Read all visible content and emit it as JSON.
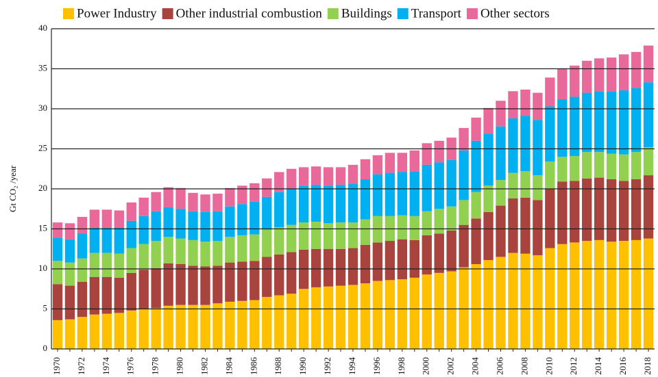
{
  "chart_data": {
    "type": "stacked_bar",
    "ylabel": "Gt CO₂ /year",
    "categories": [
      "1970",
      null,
      "1972",
      null,
      "1974",
      null,
      "1976",
      null,
      "1978",
      null,
      "1980",
      null,
      "1982",
      null,
      "1984",
      null,
      "1986",
      null,
      "1988",
      null,
      "1990",
      null,
      "1992",
      null,
      "1994",
      null,
      "1996",
      null,
      "1998",
      null,
      "2000",
      null,
      "2002",
      null,
      "2004",
      null,
      "2006",
      null,
      "2008",
      null,
      "2010",
      null,
      "2012",
      null,
      "2014",
      null,
      "2016",
      null,
      "2018"
    ],
    "series": [
      {
        "name": "Power Industry",
        "color": "#ffc000",
        "values": [
          3.6,
          3.7,
          4.0,
          4.3,
          4.4,
          4.5,
          4.8,
          5.0,
          5.1,
          5.4,
          5.5,
          5.5,
          5.5,
          5.7,
          5.9,
          6.0,
          6.1,
          6.5,
          6.7,
          6.9,
          7.5,
          7.7,
          7.8,
          7.9,
          8.0,
          8.2,
          8.5,
          8.6,
          8.7,
          8.9,
          9.3,
          9.5,
          9.7,
          10.2,
          10.6,
          11.1,
          11.5,
          12.0,
          11.9,
          11.7,
          12.6,
          13.1,
          13.3,
          13.5,
          13.6,
          13.4,
          13.5,
          13.6,
          13.8
        ]
      },
      {
        "name": "Other industrial combustion",
        "color": "#a9433d",
        "values": [
          4.5,
          4.2,
          4.4,
          4.7,
          4.6,
          4.4,
          4.7,
          4.9,
          5.0,
          5.3,
          5.1,
          4.9,
          4.8,
          4.7,
          4.9,
          4.9,
          4.9,
          5.0,
          5.1,
          5.2,
          4.9,
          4.8,
          4.7,
          4.6,
          4.6,
          4.8,
          4.8,
          4.9,
          5.0,
          4.7,
          4.9,
          4.9,
          5.1,
          5.3,
          5.7,
          6.0,
          6.4,
          6.8,
          7.0,
          6.9,
          7.4,
          7.8,
          7.7,
          7.8,
          7.8,
          7.8,
          7.5,
          7.6,
          7.9
        ]
      },
      {
        "name": "Buildings",
        "color": "#92d050",
        "values": [
          2.9,
          2.9,
          2.9,
          3.0,
          3.0,
          3.0,
          3.1,
          3.2,
          3.4,
          3.3,
          3.2,
          3.2,
          3.1,
          3.1,
          3.2,
          3.3,
          3.3,
          3.4,
          3.4,
          3.4,
          3.4,
          3.4,
          3.2,
          3.3,
          3.2,
          3.2,
          3.3,
          3.1,
          3.0,
          3.0,
          3.0,
          3.1,
          3.0,
          3.1,
          3.3,
          3.3,
          3.2,
          3.2,
          3.3,
          3.1,
          3.4,
          3.1,
          3.1,
          3.3,
          3.2,
          3.2,
          3.3,
          3.4,
          3.5
        ]
      },
      {
        "name": "Transport",
        "color": "#00b0f0",
        "values": [
          2.9,
          2.9,
          3.1,
          3.2,
          3.2,
          3.3,
          3.4,
          3.5,
          3.7,
          3.7,
          3.7,
          3.6,
          3.7,
          3.7,
          3.8,
          3.9,
          4.1,
          4.1,
          4.4,
          4.5,
          4.6,
          4.6,
          4.7,
          4.7,
          4.8,
          5.0,
          5.2,
          5.4,
          5.4,
          5.6,
          5.8,
          5.8,
          5.8,
          6.2,
          6.4,
          6.5,
          6.7,
          6.8,
          6.9,
          6.9,
          6.9,
          7.2,
          7.4,
          7.4,
          7.6,
          7.8,
          8.0,
          8.0,
          8.1
        ]
      },
      {
        "name": "Other sectors",
        "color": "#e8699a",
        "values": [
          1.9,
          2.0,
          2.1,
          2.2,
          2.2,
          2.1,
          2.3,
          2.3,
          2.4,
          2.5,
          2.6,
          2.3,
          2.2,
          2.2,
          2.3,
          2.3,
          2.3,
          2.3,
          2.5,
          2.5,
          2.3,
          2.3,
          2.3,
          2.2,
          2.4,
          2.5,
          2.4,
          2.5,
          2.4,
          2.6,
          2.7,
          2.7,
          2.8,
          2.8,
          2.9,
          3.2,
          3.2,
          3.4,
          3.3,
          3.4,
          3.6,
          3.8,
          3.9,
          4.0,
          4.1,
          4.2,
          4.5,
          4.5,
          4.6
        ]
      }
    ],
    "ylim": [
      0,
      40
    ],
    "yticks": [
      0,
      5,
      10,
      15,
      20,
      25,
      30,
      35,
      40
    ],
    "grid": true,
    "legend": "top"
  }
}
